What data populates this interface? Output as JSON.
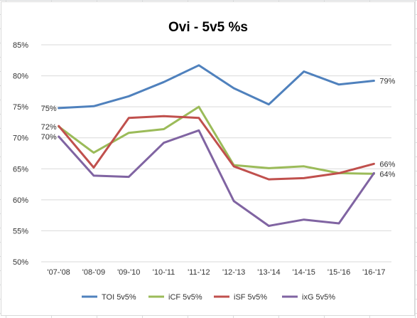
{
  "chart_data": {
    "type": "line",
    "title": "Ovi -  5v5 %s",
    "xlabel": "",
    "ylabel": "",
    "categories": [
      "'07-'08",
      "'08-'09",
      "'09-'10",
      "'10-'11",
      "'11-'12",
      "'12-'13",
      "'13-'14",
      "'14-'15",
      "'15-'16",
      "'16-'17"
    ],
    "ylim": [
      50,
      85
    ],
    "yticks": [
      "50%",
      "55%",
      "60%",
      "65%",
      "70%",
      "75%",
      "80%",
      "85%"
    ],
    "grid": true,
    "legend": "bottom",
    "series": [
      {
        "name": "TOI 5v5%",
        "color": "#4f81bd",
        "values": [
          74.8,
          75.1,
          76.7,
          79.0,
          81.7,
          78.0,
          75.4,
          80.7,
          78.6,
          79.2
        ],
        "labels": [
          {
            "index": 0,
            "text": "75%",
            "side": "left"
          },
          {
            "index": 9,
            "text": "79%",
            "side": "right"
          }
        ]
      },
      {
        "name": "iCF 5v5%",
        "color": "#9bbb59",
        "values": [
          71.8,
          67.6,
          70.8,
          71.4,
          75.0,
          65.6,
          65.1,
          65.4,
          64.3,
          64.2
        ],
        "labels": [
          {
            "index": 0,
            "text": "72%",
            "side": "left"
          },
          {
            "index": 9,
            "text": "64%",
            "side": "right"
          }
        ]
      },
      {
        "name": "iSF 5v5%",
        "color": "#c0504d",
        "values": [
          71.9,
          65.2,
          73.2,
          73.5,
          73.2,
          65.4,
          63.3,
          63.5,
          64.3,
          65.8
        ],
        "labels": [
          {
            "index": 9,
            "text": "66%",
            "side": "right"
          }
        ]
      },
      {
        "name": "ixG 5v5%",
        "color": "#8064a2",
        "values": [
          70.2,
          63.9,
          63.7,
          69.2,
          71.2,
          59.8,
          55.8,
          56.8,
          56.2,
          64.3
        ],
        "labels": [
          {
            "index": 0,
            "text": "70%",
            "side": "left"
          }
        ]
      }
    ]
  }
}
